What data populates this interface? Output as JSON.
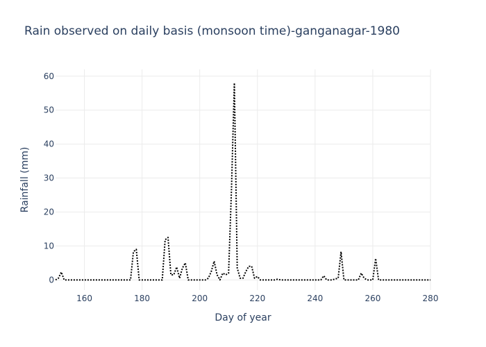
{
  "chart_data": {
    "type": "line",
    "title": "Rain observed on daily basis (monsoon time)-ganganagar-1980",
    "xlabel": "Day of year",
    "ylabel": "Rainfall (mm)",
    "xlim": [
      150,
      280
    ],
    "ylim": [
      -3,
      62
    ],
    "xticks": [
      160,
      180,
      200,
      220,
      240,
      260,
      280
    ],
    "yticks": [
      0,
      10,
      20,
      30,
      40,
      50,
      60
    ],
    "grid": true,
    "line_style": "dotted",
    "line_color": "#000000",
    "series": [
      {
        "x": [
          150,
          151,
          152,
          153,
          154,
          155,
          156,
          157,
          158,
          159,
          160,
          161,
          162,
          163,
          164,
          165,
          166,
          167,
          168,
          169,
          170,
          171,
          172,
          173,
          174,
          175,
          176,
          177,
          178,
          179,
          180,
          181,
          182,
          183,
          184,
          185,
          186,
          187,
          188,
          189,
          190,
          191,
          192,
          193,
          194,
          195,
          196,
          197,
          198,
          199,
          200,
          201,
          202,
          203,
          204,
          205,
          206,
          207,
          208,
          209,
          210,
          211,
          212,
          213,
          214,
          215,
          216,
          217,
          218,
          219,
          220,
          221,
          222,
          223,
          224,
          225,
          226,
          227,
          228,
          229,
          230,
          231,
          232,
          233,
          234,
          235,
          236,
          237,
          238,
          239,
          240,
          241,
          242,
          243,
          244,
          245,
          246,
          247,
          248,
          249,
          250,
          251,
          252,
          253,
          254,
          255,
          256,
          257,
          258,
          259,
          260,
          261,
          262,
          263,
          264,
          265,
          266,
          267,
          268,
          269,
          270,
          271,
          272,
          273,
          274,
          275,
          276,
          277,
          278,
          279,
          280
        ],
        "values": [
          0,
          0.5,
          2.3,
          0,
          0,
          0,
          0,
          0,
          0,
          0,
          0,
          0,
          0,
          0,
          0,
          0,
          0,
          0,
          0,
          0,
          0,
          0,
          0,
          0,
          0,
          0,
          0,
          8.3,
          9,
          0,
          0,
          0,
          0,
          0,
          0,
          0,
          0,
          0,
          11.8,
          12.5,
          1.5,
          1.5,
          3.8,
          0.5,
          3.5,
          5,
          0,
          0,
          0,
          0,
          0,
          0,
          0,
          0.5,
          2.5,
          5.5,
          1.5,
          0,
          2,
          1.5,
          2,
          26.5,
          58,
          3.5,
          0.5,
          0.5,
          2.5,
          4,
          4,
          0.5,
          1,
          0,
          0,
          0,
          0,
          0,
          0,
          0.2,
          0,
          0,
          0,
          0,
          0,
          0,
          0,
          0,
          0,
          0,
          0,
          0,
          0,
          0,
          0,
          1.2,
          0,
          0,
          0,
          0.3,
          0.5,
          8.3,
          0,
          0,
          0,
          0,
          0,
          0,
          2,
          0.5,
          0,
          0,
          0,
          6.3,
          0,
          0,
          0,
          0,
          0,
          0,
          0,
          0,
          0,
          0,
          0,
          0,
          0,
          0,
          0,
          0,
          0,
          0,
          0
        ]
      }
    ]
  }
}
